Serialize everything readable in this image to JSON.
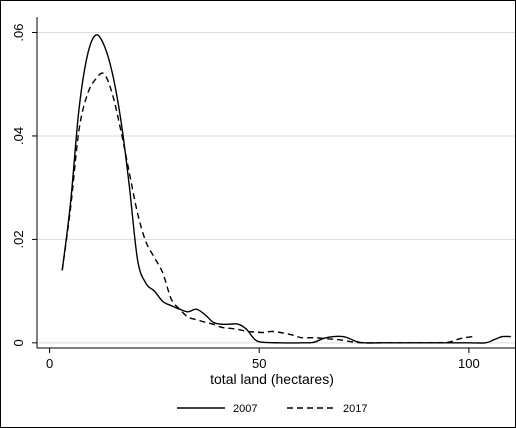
{
  "chart_data": {
    "type": "line",
    "xlabel": "total land (hectares)",
    "ylabel": "",
    "xlim": [
      -3,
      111
    ],
    "ylim": [
      -0.001,
      0.063
    ],
    "grid": "horizontal",
    "legend_position": "bottom",
    "x_ticks": [
      {
        "value": 0,
        "label": "0"
      },
      {
        "value": 50,
        "label": "50"
      },
      {
        "value": 100,
        "label": "100"
      }
    ],
    "y_ticks": [
      {
        "value": 0,
        "label": "0"
      },
      {
        "value": 0.02,
        "label": ".02"
      },
      {
        "value": 0.04,
        "label": ".04"
      },
      {
        "value": 0.06,
        "label": ".06"
      }
    ],
    "series": [
      {
        "name": "2007",
        "style": "solid",
        "color": "#000000",
        "points": [
          [
            3,
            0.014
          ],
          [
            5,
            0.027
          ],
          [
            7,
            0.045
          ],
          [
            9,
            0.0555
          ],
          [
            11,
            0.0595
          ],
          [
            13,
            0.0575
          ],
          [
            15,
            0.052
          ],
          [
            17,
            0.043
          ],
          [
            19,
            0.0305
          ],
          [
            21,
            0.016
          ],
          [
            23,
            0.0115
          ],
          [
            25,
            0.01
          ],
          [
            27,
            0.008
          ],
          [
            29,
            0.0072
          ],
          [
            31,
            0.0065
          ],
          [
            33,
            0.006
          ],
          [
            35,
            0.0065
          ],
          [
            37,
            0.0055
          ],
          [
            39,
            0.004
          ],
          [
            41,
            0.0036
          ],
          [
            43,
            0.0036
          ],
          [
            45,
            0.0036
          ],
          [
            47,
            0.0026
          ],
          [
            49,
            0.0006
          ],
          [
            51,
            0.0001
          ],
          [
            55,
            0.0
          ],
          [
            60,
            0.0
          ],
          [
            63,
            0.0001
          ],
          [
            66,
            0.001
          ],
          [
            70,
            0.0012
          ],
          [
            73,
            0.0003
          ],
          [
            75,
            0.0
          ],
          [
            80,
            0.0
          ],
          [
            85,
            0.0
          ],
          [
            90,
            0.0
          ],
          [
            95,
            0.0
          ],
          [
            100,
            0.0
          ],
          [
            104,
            0.0
          ],
          [
            106,
            0.0006
          ],
          [
            108,
            0.0012
          ],
          [
            110,
            0.0012
          ]
        ]
      },
      {
        "name": "2017",
        "style": "dashed",
        "color": "#000000",
        "points": [
          [
            3,
            0.014
          ],
          [
            5,
            0.026
          ],
          [
            7,
            0.041
          ],
          [
            9,
            0.048
          ],
          [
            11,
            0.051
          ],
          [
            13,
            0.052
          ],
          [
            15,
            0.048
          ],
          [
            17,
            0.041
          ],
          [
            19,
            0.033
          ],
          [
            21,
            0.025
          ],
          [
            23,
            0.0195
          ],
          [
            25,
            0.0165
          ],
          [
            27,
            0.0135
          ],
          [
            29,
            0.0085
          ],
          [
            31,
            0.0065
          ],
          [
            33,
            0.005
          ],
          [
            35,
            0.0045
          ],
          [
            37,
            0.004
          ],
          [
            39,
            0.0036
          ],
          [
            41,
            0.003
          ],
          [
            43,
            0.0028
          ],
          [
            45,
            0.0026
          ],
          [
            47,
            0.0022
          ],
          [
            49,
            0.0021
          ],
          [
            51,
            0.002
          ],
          [
            53,
            0.0022
          ],
          [
            55,
            0.002
          ],
          [
            58,
            0.0015
          ],
          [
            60,
            0.001
          ],
          [
            63,
            0.001
          ],
          [
            66,
            0.0008
          ],
          [
            69,
            0.0006
          ],
          [
            72,
            0.0002
          ],
          [
            75,
            0.0
          ],
          [
            80,
            0.0
          ],
          [
            85,
            0.0
          ],
          [
            90,
            0.0
          ],
          [
            95,
            0.0001
          ],
          [
            97,
            0.0006
          ],
          [
            99,
            0.001
          ],
          [
            101,
            0.0012
          ]
        ]
      }
    ]
  }
}
